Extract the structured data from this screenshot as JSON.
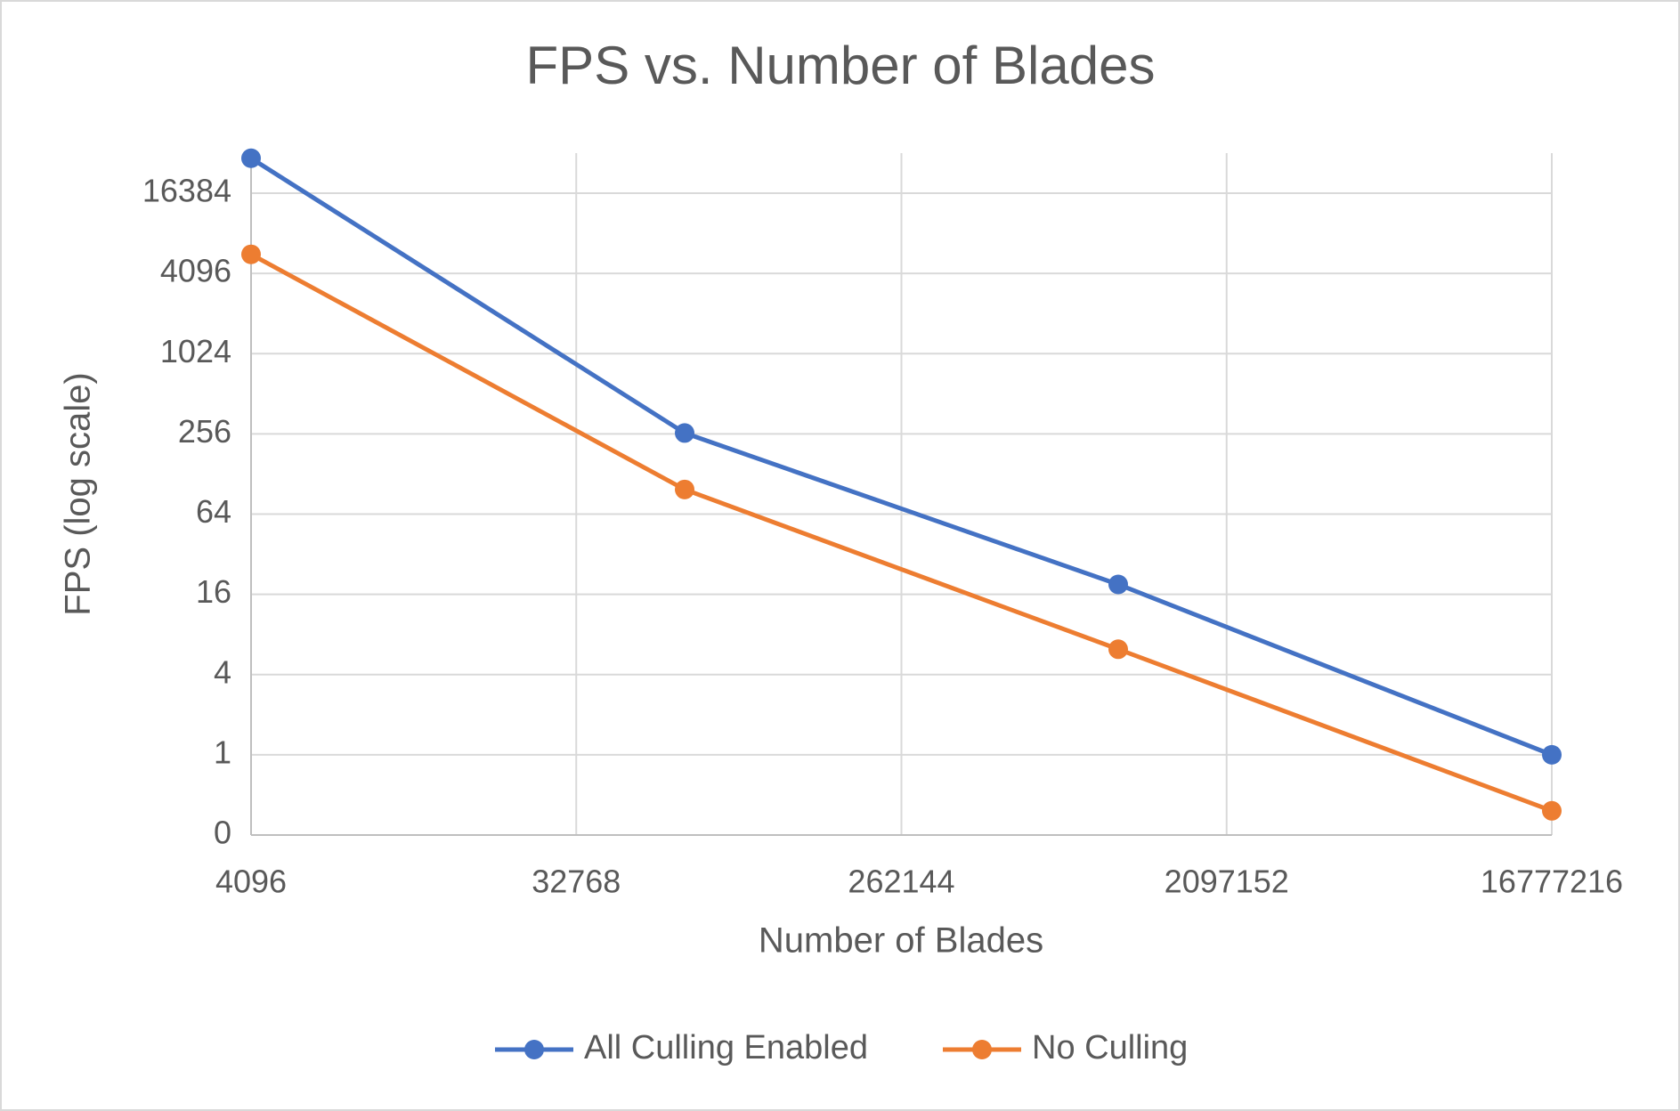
{
  "chart_data": {
    "type": "line",
    "title": "FPS vs. Number of Blades",
    "x_label": "Number of Blades",
    "y_label": "FPS (log scale)",
    "x": [
      4096,
      65536,
      1048576,
      16777216
    ],
    "series": [
      {
        "name": "All Culling Enabled",
        "color": "#4472c4",
        "values": [
          30000,
          260,
          19,
          1
        ]
      },
      {
        "name": "No Culling",
        "color": "#ed7d31",
        "values": [
          5700,
          98,
          6.2,
          0.38
        ]
      }
    ],
    "xlim": [
      4096,
      16777216
    ],
    "xticks": [
      4096,
      32768,
      262144,
      2097152,
      16777216
    ],
    "ylim": [
      0.25,
      32768
    ],
    "yticks": [
      {
        "value": 0.25,
        "label": "0"
      },
      1,
      4,
      16,
      64,
      256,
      1024,
      4096,
      16384
    ],
    "log_scale": {
      "x": 2,
      "y": 2
    },
    "grid": true,
    "legend": "bottom"
  }
}
